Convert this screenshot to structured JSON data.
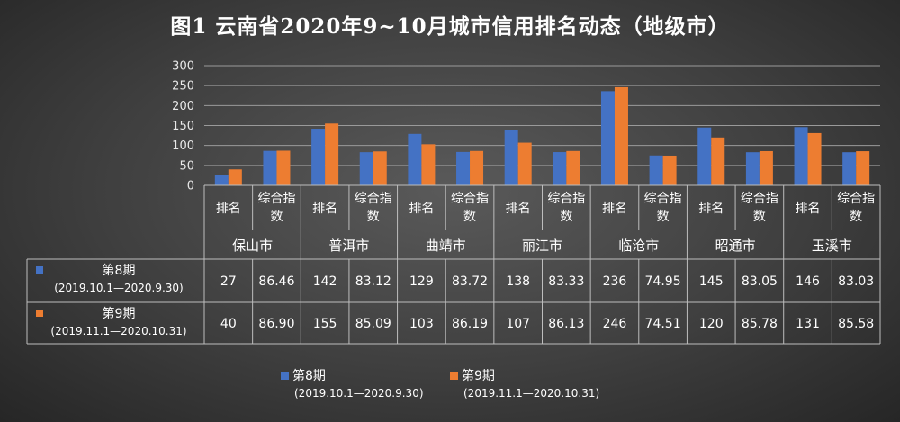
{
  "chart_data": {
    "type": "bar",
    "title": "图1 云南省2020年9~10月城市信用排名动态（地级市）",
    "ylim": [
      0,
      300
    ],
    "yticks": [
      0,
      50,
      100,
      150,
      200,
      250,
      300
    ],
    "grid": true,
    "legend_position": "bottom",
    "cities": [
      "保山市",
      "普洱市",
      "曲靖市",
      "丽江市",
      "临沧市",
      "昭通市",
      "玉溪市"
    ],
    "metrics": [
      "排名",
      "综合指数"
    ],
    "metric_label_lines": [
      [
        "排名"
      ],
      [
        "综合指",
        "数"
      ]
    ],
    "series": [
      {
        "name": "第8期",
        "period": "(2019.10.1—2020.9.30)",
        "color": "#4472C4",
        "rank": [
          27,
          142,
          129,
          138,
          236,
          145,
          146
        ],
        "index": [
          86.46,
          83.12,
          83.72,
          83.33,
          74.95,
          83.05,
          83.03
        ],
        "rank_text": [
          "27",
          "142",
          "129",
          "138",
          "236",
          "145",
          "146"
        ],
        "index_text": [
          "86.46",
          "83.12",
          "83.72",
          "83.33",
          "74.95",
          "83.05",
          "83.03"
        ]
      },
      {
        "name": "第9期",
        "period": "(2019.11.1—2020.10.31)",
        "color": "#ED7D31",
        "rank": [
          40,
          155,
          103,
          107,
          246,
          120,
          131
        ],
        "index": [
          86.9,
          85.09,
          86.19,
          86.13,
          74.51,
          85.78,
          85.58
        ],
        "rank_text": [
          "40",
          "155",
          "103",
          "107",
          "246",
          "120",
          "131"
        ],
        "index_text": [
          "86.90",
          "85.09",
          "86.19",
          "86.13",
          "74.51",
          "85.78",
          "85.58"
        ]
      }
    ]
  }
}
